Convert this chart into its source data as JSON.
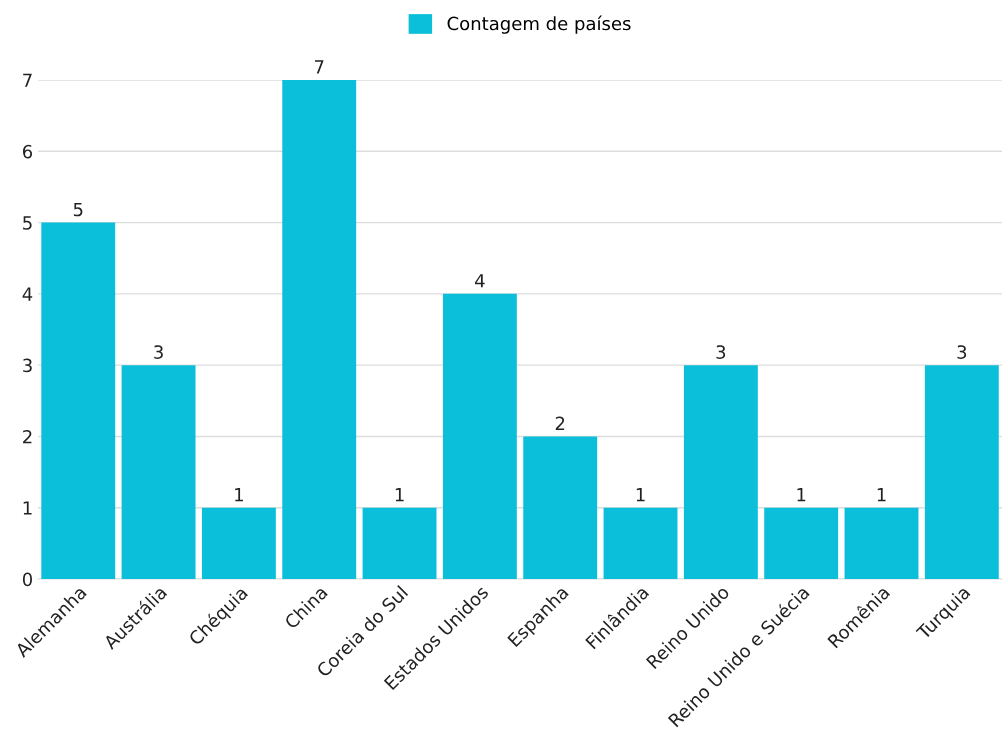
{
  "chart_data": {
    "type": "bar",
    "categories": [
      "Alemanha",
      "Austrália",
      "Chéquia",
      "China",
      "Coreia do Sul",
      "Estados Unidos",
      "Espanha",
      "Finlândia",
      "Reino Unido",
      "Reino Unido e Suécia",
      "Romênia",
      "Turquia"
    ],
    "series": [
      {
        "name": "Contagem de países",
        "color": "#0bbed9",
        "values": [
          5,
          3,
          1,
          7,
          1,
          4,
          2,
          1,
          3,
          1,
          1,
          3
        ]
      }
    ],
    "ylim": [
      0,
      7
    ],
    "yticks": [
      0,
      1,
      2,
      3,
      4,
      5,
      6,
      7
    ],
    "grid": "y",
    "legend": "top",
    "data_labels": true
  }
}
